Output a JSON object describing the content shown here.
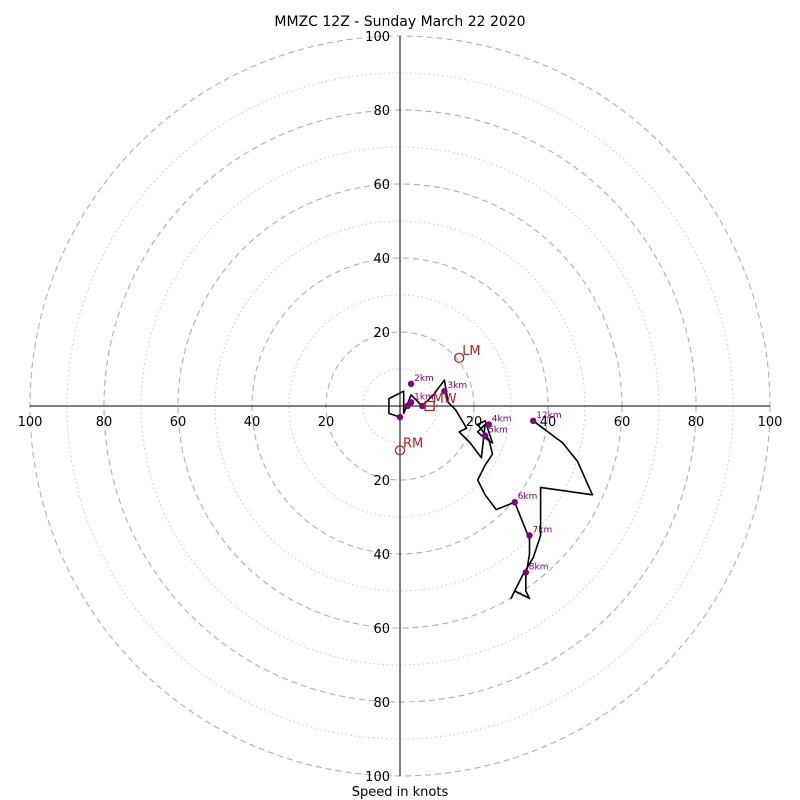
{
  "chart_data": {
    "type": "hodograph",
    "title": "MMZC 12Z - Sunday March 22 2020",
    "xlabel": "Speed in knots",
    "range": 100,
    "ring_labels": [
      "20",
      "40",
      "60",
      "80",
      "100"
    ],
    "major_rings": [
      20,
      40,
      60,
      80,
      100
    ],
    "minor_rings": [
      10,
      30,
      50,
      70,
      90
    ],
    "hodograph": [
      [
        0,
        -3
      ],
      [
        -3,
        -2
      ],
      [
        -3,
        2
      ],
      [
        1,
        4
      ],
      [
        1,
        -2
      ],
      [
        3,
        3
      ],
      [
        6,
        0
      ],
      [
        9,
        3
      ],
      [
        12,
        7
      ],
      [
        13,
        1
      ],
      [
        15,
        -1
      ],
      [
        18,
        -6
      ],
      [
        16,
        -7
      ],
      [
        19,
        -10
      ],
      [
        22,
        -14
      ],
      [
        23,
        -5
      ],
      [
        21,
        -7
      ],
      [
        22,
        -8
      ],
      [
        25,
        -10
      ],
      [
        23,
        -4
      ],
      [
        21,
        -5
      ],
      [
        24,
        -9
      ],
      [
        25,
        -13
      ],
      [
        23,
        -16
      ],
      [
        21,
        -20
      ],
      [
        23,
        -24
      ],
      [
        26,
        -28
      ],
      [
        31,
        -26
      ],
      [
        35,
        -36
      ],
      [
        35,
        -40
      ],
      [
        34,
        -46
      ],
      [
        34,
        -50
      ],
      [
        35,
        -52
      ],
      [
        31,
        -50
      ],
      [
        30,
        -52
      ],
      [
        33,
        -46
      ],
      [
        36,
        -41
      ],
      [
        38,
        -35
      ],
      [
        38,
        -22
      ],
      [
        52,
        -24
      ],
      [
        48,
        -15
      ],
      [
        44,
        -10
      ],
      [
        36,
        -4
      ]
    ],
    "height_markers": [
      {
        "label": "",
        "u": 0,
        "v": -3
      },
      {
        "label": "",
        "u": 2,
        "v": 0
      },
      {
        "label": "",
        "u": 6,
        "v": 0
      },
      {
        "label": "1km",
        "u": 3,
        "v": 1
      },
      {
        "label": "2km",
        "u": 3,
        "v": 6
      },
      {
        "label": "3km",
        "u": 12,
        "v": 4
      },
      {
        "label": "4km",
        "u": 24,
        "v": -5
      },
      {
        "label": "5km",
        "u": 23,
        "v": -8
      },
      {
        "label": "6km",
        "u": 31,
        "v": -26
      },
      {
        "label": "7km",
        "u": 35,
        "v": -35
      },
      {
        "label": "8km",
        "u": 34,
        "v": -45
      },
      {
        "label": "12km",
        "u": 36,
        "v": -4
      }
    ],
    "storm_motion": [
      {
        "label": "LM",
        "u": 16,
        "v": 13,
        "marker": "circle"
      },
      {
        "label": "RM",
        "u": 0,
        "v": -12,
        "marker": "circle"
      },
      {
        "label": "MW",
        "u": 8,
        "v": 0,
        "marker": "square"
      }
    ],
    "colors": {
      "hodograph": "#000000",
      "height_markers": "#800080",
      "storm_motion": "#b22222",
      "grid": "#b0b0b0",
      "axes": "#000000"
    }
  }
}
